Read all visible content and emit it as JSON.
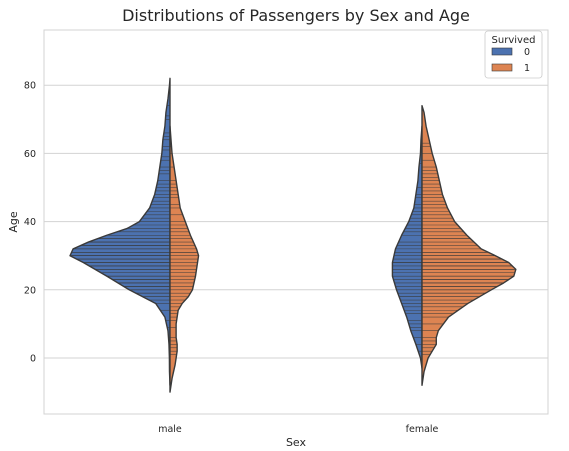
{
  "chart_data": {
    "type": "violin",
    "title": "Distributions of Passengers by Sex and Age",
    "xlabel": "Sex",
    "ylabel": "Age",
    "categories": [
      "male",
      "female"
    ],
    "ylim": [
      -16,
      98
    ],
    "yticks": [
      0,
      20,
      40,
      60,
      80
    ],
    "grid": true,
    "split": true,
    "inner": "stick",
    "legend": {
      "title": "Survived",
      "entries": [
        "0",
        "1"
      ],
      "placement": "top-right"
    },
    "colors": {
      "0": "#4c72b0",
      "1": "#dd8452",
      "outline": "#3a3a3a",
      "grid": "#d3d3d3"
    },
    "series": [
      {
        "name": "0",
        "violins": [
          {
            "category": "male",
            "profile": [
              [
                -8,
                0
              ],
              [
                -4,
                0.005
              ],
              [
                0,
                0.006
              ],
              [
                4,
                0.01
              ],
              [
                8,
                0.02
              ],
              [
                12,
                0.05
              ],
              [
                16,
                0.14
              ],
              [
                20,
                0.4
              ],
              [
                24,
                0.62
              ],
              [
                28,
                0.85
              ],
              [
                30,
                0.98
              ],
              [
                32,
                0.95
              ],
              [
                34,
                0.8
              ],
              [
                36,
                0.62
              ],
              [
                38,
                0.42
              ],
              [
                40,
                0.3
              ],
              [
                44,
                0.2
              ],
              [
                48,
                0.15
              ],
              [
                52,
                0.12
              ],
              [
                56,
                0.1
              ],
              [
                60,
                0.08
              ],
              [
                64,
                0.07
              ],
              [
                68,
                0.05
              ],
              [
                72,
                0.04
              ],
              [
                76,
                0.02
              ],
              [
                80,
                0.005
              ],
              [
                82,
                0
              ]
            ],
            "ages": [
              2,
              4,
              6,
              9,
              11,
              14,
              16,
              17,
              18,
              18,
              19,
              19,
              20,
              20,
              21,
              21,
              22,
              22,
              23,
              23,
              24,
              24,
              25,
              25,
              26,
              26,
              27,
              27,
              28,
              28,
              29,
              29,
              30,
              30,
              30,
              31,
              31,
              32,
              32,
              33,
              33,
              34,
              34,
              35,
              35,
              36,
              36,
              37,
              38,
              39,
              40,
              41,
              42,
              43,
              44,
              45,
              46,
              47,
              48,
              49,
              50,
              51,
              52,
              54,
              55,
              56,
              58,
              59,
              61,
              62,
              64,
              65,
              66,
              70,
              71,
              74,
              80
            ]
          },
          {
            "category": "female",
            "profile": [
              [
                -3,
                0
              ],
              [
                0,
                0.015
              ],
              [
                4,
                0.06
              ],
              [
                8,
                0.11
              ],
              [
                12,
                0.15
              ],
              [
                16,
                0.2
              ],
              [
                20,
                0.25
              ],
              [
                24,
                0.29
              ],
              [
                28,
                0.29
              ],
              [
                32,
                0.26
              ],
              [
                36,
                0.2
              ],
              [
                40,
                0.13
              ],
              [
                44,
                0.08
              ],
              [
                48,
                0.06
              ],
              [
                52,
                0.04
              ],
              [
                56,
                0.03
              ],
              [
                60,
                0.015
              ],
              [
                64,
                0.01
              ],
              [
                68,
                0
              ]
            ],
            "ages": [
              2,
              4,
              6,
              8,
              9,
              10,
              11,
              13,
              14,
              15,
              16,
              17,
              18,
              18,
              19,
              20,
              21,
              22,
              23,
              24,
              25,
              26,
              27,
              28,
              28,
              29,
              30,
              31,
              32,
              33,
              34,
              36,
              37,
              38,
              39,
              40,
              41,
              42,
              43,
              44,
              45,
              47,
              48,
              50,
              57
            ]
          }
        ]
      },
      {
        "name": "1",
        "violins": [
          {
            "category": "male",
            "profile": [
              [
                -10,
                0
              ],
              [
                -6,
                0.02
              ],
              [
                -2,
                0.05
              ],
              [
                0,
                0.06
              ],
              [
                2,
                0.07
              ],
              [
                4,
                0.07
              ],
              [
                6,
                0.06
              ],
              [
                8,
                0.06
              ],
              [
                10,
                0.06
              ],
              [
                12,
                0.07
              ],
              [
                14,
                0.08
              ],
              [
                16,
                0.12
              ],
              [
                18,
                0.18
              ],
              [
                20,
                0.22
              ],
              [
                24,
                0.25
              ],
              [
                28,
                0.27
              ],
              [
                30,
                0.28
              ],
              [
                32,
                0.26
              ],
              [
                36,
                0.2
              ],
              [
                40,
                0.15
              ],
              [
                44,
                0.1
              ],
              [
                48,
                0.08
              ],
              [
                52,
                0.06
              ],
              [
                56,
                0.04
              ],
              [
                60,
                0.02
              ],
              [
                64,
                0.01
              ],
              [
                68,
                0
              ]
            ],
            "ages": [
              1,
              2,
              3,
              4,
              5,
              6,
              9,
              11,
              12,
              13,
              14,
              15,
              16,
              17,
              18,
              19,
              20,
              21,
              22,
              23,
              24,
              25,
              25,
              26,
              27,
              28,
              29,
              30,
              31,
              31,
              32,
              33,
              34,
              35,
              36,
              37,
              38,
              39,
              40,
              42,
              44,
              45,
              47,
              48,
              49,
              50,
              51,
              52,
              56,
              60,
              62
            ]
          },
          {
            "category": "female",
            "profile": [
              [
                -8,
                0
              ],
              [
                -4,
                0.02
              ],
              [
                0,
                0.06
              ],
              [
                2,
                0.1
              ],
              [
                4,
                0.14
              ],
              [
                6,
                0.14
              ],
              [
                8,
                0.16
              ],
              [
                12,
                0.26
              ],
              [
                16,
                0.45
              ],
              [
                20,
                0.68
              ],
              [
                22,
                0.8
              ],
              [
                24,
                0.9
              ],
              [
                26,
                0.92
              ],
              [
                28,
                0.85
              ],
              [
                30,
                0.72
              ],
              [
                32,
                0.58
              ],
              [
                36,
                0.44
              ],
              [
                40,
                0.32
              ],
              [
                44,
                0.25
              ],
              [
                48,
                0.2
              ],
              [
                52,
                0.17
              ],
              [
                56,
                0.14
              ],
              [
                60,
                0.1
              ],
              [
                64,
                0.07
              ],
              [
                68,
                0.04
              ],
              [
                72,
                0.02
              ],
              [
                74,
                0
              ]
            ],
            "ages": [
              1,
              2,
              3,
              4,
              5,
              6,
              8,
              10,
              12,
              13,
              14,
              15,
              16,
              17,
              18,
              18,
              19,
              19,
              20,
              20,
              21,
              21,
              22,
              22,
              23,
              23,
              24,
              24,
              25,
              25,
              26,
              26,
              27,
              27,
              28,
              28,
              29,
              29,
              30,
              30,
              31,
              31,
              32,
              33,
              34,
              35,
              35,
              36,
              37,
              38,
              39,
              40,
              41,
              42,
              43,
              44,
              45,
              46,
              47,
              48,
              49,
              50,
              51,
              52,
              53,
              54,
              55,
              56,
              58,
              60,
              62,
              63
            ]
          }
        ]
      }
    ]
  }
}
